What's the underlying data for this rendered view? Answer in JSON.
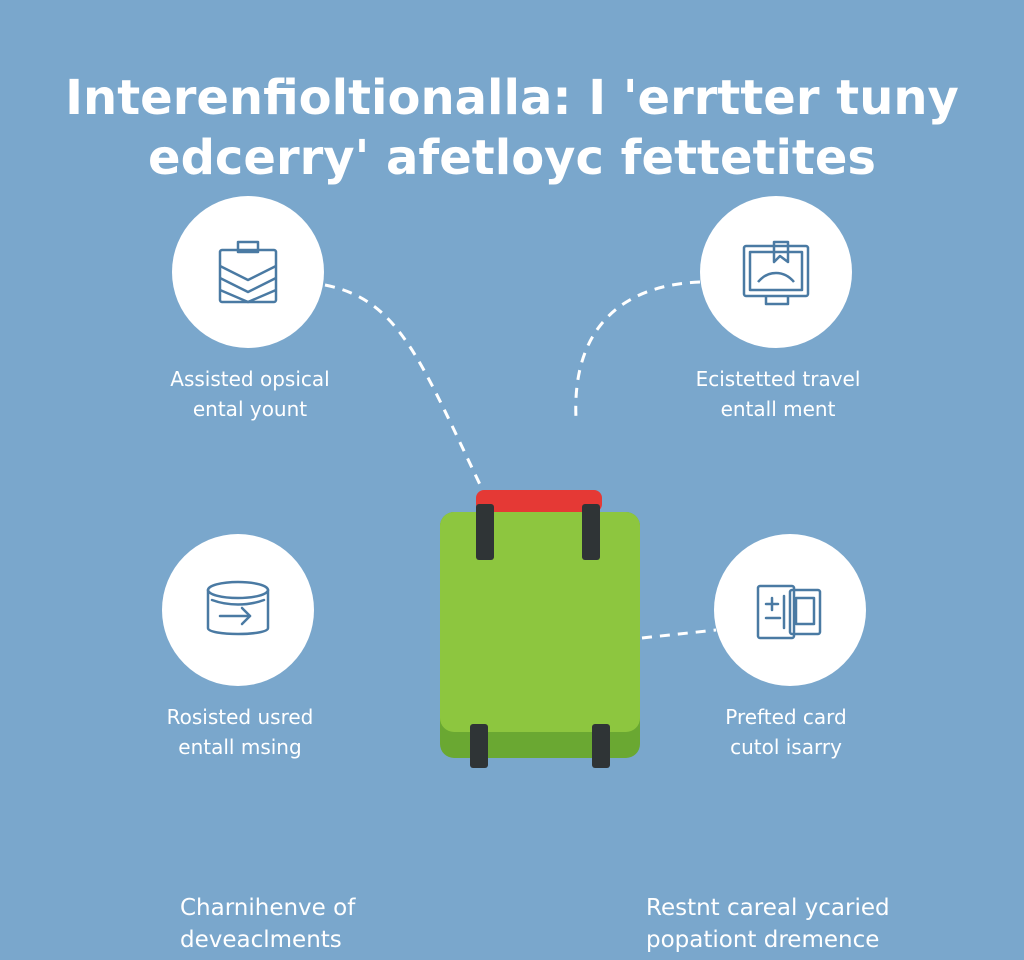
{
  "title": {
    "line1": "Interenfioltionalla: I 'errtter tuny",
    "line2": "edcerry' afetloyc fettetites"
  },
  "features": [
    {
      "icon": "folder-icon",
      "line1": "Assisted opsical",
      "line2": "ental yount"
    },
    {
      "icon": "document-frame-icon",
      "line1": "Ecistetted travel",
      "line2": "entall ment"
    },
    {
      "icon": "container-arrow-icon",
      "line1": "Rosisted usred",
      "line2": "entall msing"
    },
    {
      "icon": "id-card-icon",
      "line1": "Prefted card",
      "line2": "cutol isarry"
    }
  ],
  "footer": {
    "left": {
      "line1": "Charnihenve of",
      "line2": "deveaclments"
    },
    "right": {
      "line1": "Restnt careal ycaried",
      "line2": "popationt dremence"
    }
  },
  "colors": {
    "background": "#7aa7cc",
    "suitcase_body": "#8dc63f",
    "suitcase_handle": "#e53935",
    "icon_stroke": "#4a7aa3"
  }
}
